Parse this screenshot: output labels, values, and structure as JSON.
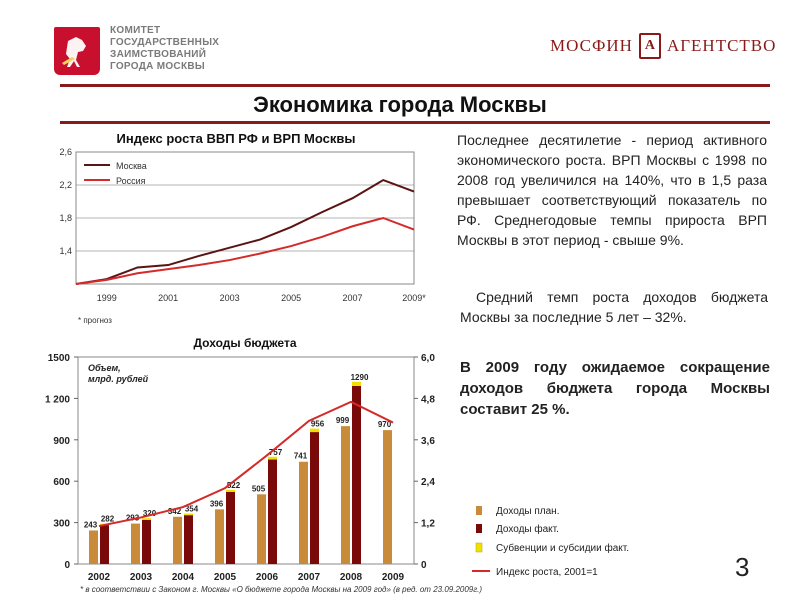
{
  "header": {
    "org_lines": [
      "КОМИТЕТ",
      "ГОСУДАРСТВЕННЫХ",
      "ЗАИМСТВОВАНИЙ",
      "ГОРОДА МОСКВЫ"
    ],
    "brand_left": "МОСФИН",
    "brand_mark": "А",
    "brand_right": "АГЕНТСТВО",
    "page_title": "Экономика города Москвы"
  },
  "text": {
    "para1": "Последнее десятилетие - период активного экономического роста. ВРП Москвы с 1998 по 2008 год увеличился на 140%, что в 1,5 раза превышает соответствующий показатель по РФ. Среднегодовые темпы прироста ВРП Москвы в этот период - свыше 9%.",
    "para2": "Средний темп роста доходов бюджета Москвы за последние 5 лет – 32%.",
    "para3": "В 2009 году ожидаемое сокращение доходов бюджета города Москвы составит 25 %."
  },
  "page_number": "3",
  "footnote": "* в соответствии с Законом г. Москвы «О бюджете города Москвы на 2009 год» (в ред. от 23.09.2009г.)",
  "colors": {
    "moscow": "#5a1414",
    "russia": "#d42a2a",
    "plan": "#c98a3a",
    "fact": "#7a0a0a",
    "subsidy": "#f0e000",
    "index": "#d42a2a",
    "accent": "#8a1a1a"
  },
  "chart_data": [
    {
      "type": "line",
      "title": "Индекс роста ВВП РФ и ВРП Москвы",
      "x": [
        1998,
        1999,
        2000,
        2001,
        2002,
        2003,
        2004,
        2005,
        2006,
        2007,
        2008,
        2009
      ],
      "xticks": [
        "1999",
        "2001",
        "2003",
        "2005",
        "2007",
        "2009*"
      ],
      "yticks": [
        "1,4",
        "1,8",
        "2,2",
        "2,6"
      ],
      "ylim": [
        1.0,
        2.6
      ],
      "series": [
        {
          "name": "Москва",
          "values": [
            1.0,
            1.06,
            1.2,
            1.23,
            1.34,
            1.44,
            1.54,
            1.69,
            1.87,
            2.04,
            2.26,
            2.12
          ]
        },
        {
          "name": "Россия",
          "values": [
            1.0,
            1.05,
            1.13,
            1.18,
            1.23,
            1.29,
            1.37,
            1.46,
            1.57,
            1.7,
            1.8,
            1.66
          ]
        }
      ],
      "note": "* прогноз",
      "grid": true,
      "legend": "top-left"
    },
    {
      "type": "bar",
      "title": "Доходы бюджета",
      "unit_label": "Объем, млрд. рублей",
      "categories": [
        "2002",
        "2003",
        "2004",
        "2005",
        "2006",
        "2007",
        "2008",
        "2009"
      ],
      "yticks_left": [
        "0",
        "300",
        "600",
        "900",
        "1 200",
        "1500"
      ],
      "ylim_left": [
        0,
        1500
      ],
      "yticks_right": [
        "0",
        "1,2",
        "2,4",
        "3,6",
        "4,8",
        "6,0"
      ],
      "ylim_right": [
        0,
        6.0
      ],
      "series": [
        {
          "name": "Доходы план.",
          "values": [
            243,
            293,
            342,
            396,
            505,
            741,
            999,
            970
          ],
          "labels": [
            "243",
            "293",
            "342",
            "396",
            "505",
            "741",
            "999",
            "970"
          ]
        },
        {
          "name": "Доходы факт.",
          "values": [
            282,
            320,
            354,
            522,
            757,
            956,
            1290,
            null
          ],
          "labels": [
            "282",
            "320",
            "354",
            "522",
            "757",
            "956",
            "1290",
            ""
          ]
        },
        {
          "name": "Субвенции и субсидии факт.",
          "values": [
            10,
            12,
            12,
            15,
            20,
            25,
            30,
            null
          ]
        },
        {
          "name": "Индекс роста, 2001=1",
          "values": [
            1.1,
            1.35,
            1.65,
            2.2,
            3.15,
            4.15,
            4.7,
            4.1
          ],
          "axis": "right"
        }
      ]
    }
  ]
}
